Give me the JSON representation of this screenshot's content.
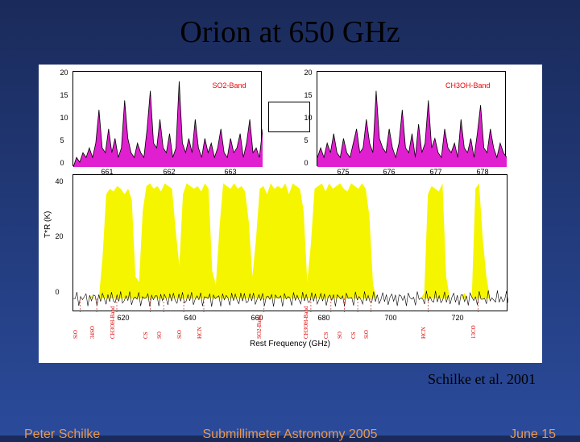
{
  "title": "Orion at 650 GHz",
  "citation": "Schilke et al. 2001",
  "footer": {
    "left": "Peter Schilke",
    "center": "Submillimeter Astronomy 2005",
    "right": "June 15"
  },
  "ylabel": "T*R (K)",
  "xlabel": "Rest Frequency (GHz)",
  "inset_left": {
    "label": "SO2-Band",
    "xlim": [
      660.5,
      663.5
    ],
    "ylim": [
      0,
      20
    ],
    "yticks": [
      0,
      5,
      10,
      15,
      20
    ],
    "xticks": [
      661,
      662,
      663
    ],
    "fill_color": "#e020d0",
    "line_color": "#000",
    "data": [
      0,
      2,
      1,
      3,
      2,
      4,
      2,
      5,
      12,
      4,
      3,
      8,
      3,
      6,
      2,
      4,
      14,
      6,
      3,
      2,
      5,
      3,
      2,
      8,
      16,
      5,
      4,
      10,
      4,
      3,
      7,
      2,
      4,
      18,
      5,
      3,
      6,
      3,
      10,
      4,
      2,
      6,
      3,
      5,
      2,
      4,
      8,
      3,
      2,
      6,
      3,
      4,
      7,
      2,
      5,
      10,
      3,
      4,
      2,
      8
    ]
  },
  "inset_right": {
    "label": "CH3OH-Band",
    "xlim": [
      674.5,
      678.5
    ],
    "ylim": [
      0,
      20
    ],
    "yticks": [
      0,
      5,
      10,
      15,
      20
    ],
    "xticks": [
      675,
      676,
      677,
      678
    ],
    "fill_color": "#e020d0",
    "line_color": "#000",
    "data": [
      2,
      4,
      2,
      5,
      3,
      7,
      3,
      2,
      6,
      3,
      2,
      5,
      8,
      3,
      4,
      10,
      5,
      3,
      16,
      6,
      4,
      3,
      8,
      4,
      2,
      5,
      12,
      4,
      3,
      7,
      2,
      9,
      3,
      5,
      14,
      4,
      6,
      3,
      2,
      8,
      4,
      3,
      5,
      2,
      10,
      4,
      3,
      6,
      2,
      7,
      13,
      4,
      3,
      8,
      4,
      2,
      5,
      3,
      2
    ]
  },
  "main": {
    "xlim": [
      605,
      735
    ],
    "ylim": [
      -5,
      45
    ],
    "xticks": [
      620,
      640,
      660,
      680,
      700,
      720
    ],
    "yticks": [
      0,
      20,
      40
    ],
    "fill_color": "#f5f500",
    "line_color": "#000",
    "baseline_color": "#000",
    "data": [
      0,
      0,
      0,
      0,
      0,
      1,
      0,
      0,
      15,
      38,
      40,
      39,
      41,
      40,
      38,
      40,
      36,
      8,
      6,
      32,
      41,
      42,
      40,
      41,
      39,
      42,
      41,
      40,
      25,
      12,
      38,
      42,
      41,
      40,
      41,
      39,
      42,
      40,
      10,
      5,
      26,
      42,
      41,
      40,
      42,
      40,
      41,
      39,
      28,
      8,
      22,
      40,
      41,
      38,
      42,
      40,
      41,
      40,
      42,
      38,
      42,
      41,
      40,
      32,
      6,
      20,
      40,
      41,
      42,
      39,
      42,
      40,
      41,
      42,
      40,
      39,
      42,
      41,
      40,
      42,
      40,
      30,
      5,
      0,
      0,
      0,
      0,
      0,
      0,
      0,
      0,
      0,
      0,
      0,
      0,
      0,
      2,
      38,
      41,
      40,
      39,
      42,
      8,
      0,
      0,
      0,
      0,
      2,
      0,
      0,
      40,
      42,
      22,
      8,
      0,
      0,
      0,
      0,
      0,
      0
    ],
    "noise_amp": 2
  },
  "line_markers": {
    "color": "#d00000",
    "labels": [
      "SiO",
      "34SO",
      "CH3OH-Band",
      "CS",
      "SO",
      "SiO",
      "HCN",
      "SO2-Band",
      "CH3OH-Band",
      "CS",
      "SO",
      "CS",
      "SiO",
      "HCN",
      "13CO"
    ],
    "positions": [
      607,
      612,
      618,
      628,
      632,
      638,
      644,
      662,
      676,
      682,
      686,
      690,
      694,
      711,
      726
    ]
  },
  "colors": {
    "slide_bg_top": "#1a2a5a",
    "slide_bg_bottom": "#2a4a9a",
    "chart_bg": "#ffffff",
    "footer_text": "#e89850",
    "title_text": "#000000"
  }
}
